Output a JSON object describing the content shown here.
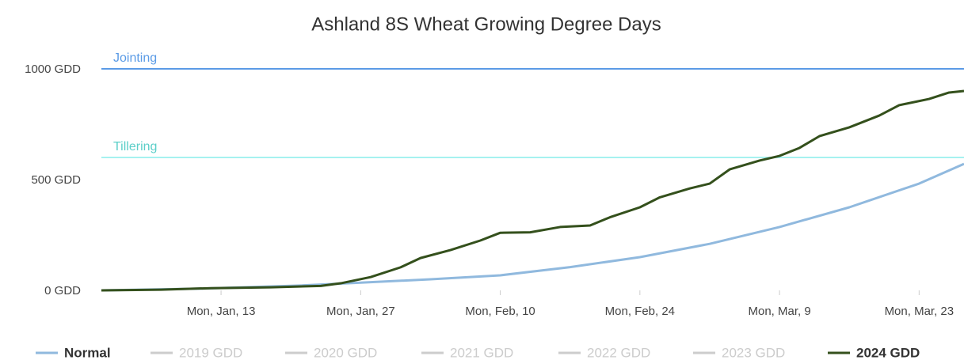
{
  "chart_data": {
    "type": "line",
    "title": "Ashland 8S Wheat Growing Degree Days",
    "xlim": [
      0,
      86.5
    ],
    "xticks": [
      {
        "value": 12,
        "label": "Mon, Jan, 13"
      },
      {
        "value": 26,
        "label": "Mon, Jan, 27"
      },
      {
        "value": 40,
        "label": "Mon, Feb, 10"
      },
      {
        "value": 54,
        "label": "Mon, Feb, 24"
      },
      {
        "value": 68,
        "label": "Mon, Mar, 9"
      },
      {
        "value": 82,
        "label": "Mon, Mar, 23"
      }
    ],
    "ylim": [
      0,
      1000
    ],
    "yticks": [
      {
        "value": 0,
        "label": "0 GDD"
      },
      {
        "value": 500,
        "label": "500 GDD"
      },
      {
        "value": 1000,
        "label": "1000 GDD"
      }
    ],
    "grid": false,
    "plot_lines": [
      {
        "label": "Jointing",
        "value": 1000,
        "color": "#5b9be6"
      },
      {
        "label": "Tillering",
        "value": 600,
        "color": "#a6f2f0"
      }
    ],
    "series": [
      {
        "name": "Normal",
        "color": "#90b9de",
        "visible": true,
        "x": [
          0,
          10,
          20,
          26,
          33,
          40,
          47,
          54,
          61,
          68,
          75,
          82,
          86.5
        ],
        "values": [
          0,
          8,
          22,
          35,
          50,
          68,
          105,
          150,
          210,
          286,
          375,
          482,
          571
        ]
      },
      {
        "name": "2019 GDD",
        "color": "#cccccc",
        "visible": false
      },
      {
        "name": "2020 GDD",
        "color": "#cccccc",
        "visible": false
      },
      {
        "name": "2021 GDD",
        "color": "#cccccc",
        "visible": false
      },
      {
        "name": "2022 GDD",
        "color": "#cccccc",
        "visible": false
      },
      {
        "name": "2023 GDD",
        "color": "#cccccc",
        "visible": false
      },
      {
        "name": "2024 GDD",
        "color": "#34501c",
        "visible": true,
        "x": [
          0,
          6,
          11,
          17,
          22,
          24,
          27,
          30,
          32,
          35,
          38,
          40,
          43,
          46,
          49,
          51,
          54,
          56,
          59,
          61,
          63,
          66,
          68,
          70,
          72,
          75,
          78,
          80,
          83,
          85,
          86.5
        ],
        "values": [
          0,
          3,
          10,
          14,
          20,
          32,
          60,
          104,
          146,
          182,
          225,
          260,
          262,
          286,
          293,
          330,
          375,
          420,
          460,
          482,
          546,
          586,
          607,
          643,
          696,
          736,
          789,
          836,
          864,
          893,
          900
        ]
      }
    ]
  }
}
